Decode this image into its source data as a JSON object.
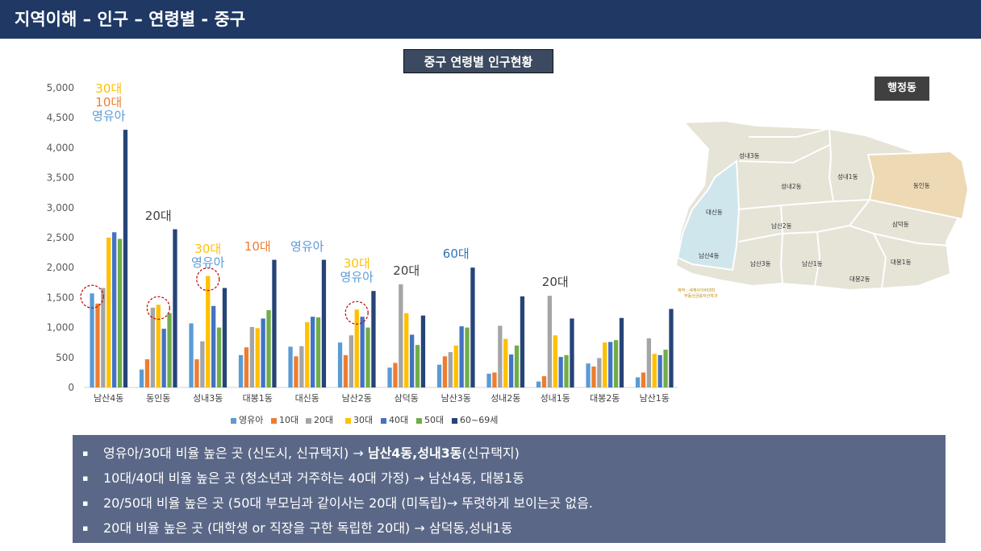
{
  "header": {
    "title": "지역이해 – 인구 – 연령별 - 중구"
  },
  "chart_title": "중구 연령별 인구현황",
  "map": {
    "label": "행정동",
    "districts": [
      "성내3동",
      "성내2동",
      "성내1동",
      "동인동",
      "대신동",
      "남산2동",
      "삼덕동",
      "남산4동",
      "남산3동",
      "남산1동",
      "대봉1동",
      "대봉2동"
    ],
    "credit_line1": "제작 : 세계사이버대학",
    "credit_line2": "부동산금융자산학과",
    "highlight_color": "#eed9b5",
    "blue_color": "#cfe6ec"
  },
  "chart_data": {
    "type": "bar",
    "categories": [
      "남산4동",
      "동인동",
      "성내3동",
      "대봉1동",
      "대신동",
      "남산2동",
      "삼덕동",
      "남산3동",
      "성내2동",
      "성내1동",
      "대봉2동",
      "남산1동"
    ],
    "series": [
      {
        "name": "영유아",
        "color": "#5b9bd5",
        "values": [
          1570,
          300,
          1070,
          540,
          680,
          750,
          330,
          380,
          230,
          100,
          400,
          170
        ]
      },
      {
        "name": "10대",
        "color": "#ed7d31",
        "values": [
          1400,
          470,
          470,
          670,
          520,
          540,
          410,
          520,
          250,
          190,
          350,
          250
        ]
      },
      {
        "name": "20대",
        "color": "#a5a5a5",
        "values": [
          1660,
          1330,
          770,
          1010,
          690,
          870,
          1720,
          590,
          1030,
          1530,
          490,
          820
        ]
      },
      {
        "name": "30대",
        "color": "#ffc000",
        "values": [
          2500,
          1380,
          1860,
          990,
          1090,
          1300,
          1240,
          700,
          810,
          870,
          750,
          560
        ]
      },
      {
        "name": "40대",
        "color": "#4472c4",
        "values": [
          2590,
          980,
          1360,
          1150,
          1180,
          1180,
          880,
          1020,
          550,
          510,
          760,
          540
        ]
      },
      {
        "name": "50대",
        "color": "#70ad47",
        "values": [
          2480,
          1240,
          1000,
          1290,
          1170,
          1000,
          710,
          1000,
          700,
          540,
          790,
          630
        ]
      },
      {
        "name": "60~69세",
        "color": "#264478",
        "values": [
          4300,
          2640,
          1660,
          2130,
          2130,
          1610,
          1200,
          2000,
          1520,
          1150,
          1160,
          1310
        ]
      }
    ],
    "ylim": [
      0,
      5000
    ],
    "yticks": [
      "0",
      "500",
      "1,000",
      "1,500",
      "2,000",
      "2,500",
      "3,000",
      "3,500",
      "4,000",
      "4,500",
      "5,000"
    ],
    "grid": false,
    "legend_position": "bottom",
    "annotations": [
      {
        "category_index": 0,
        "lines": [
          {
            "text": "30대",
            "color": "#ffc000"
          },
          {
            "text": "10대",
            "color": "#ed7d31"
          },
          {
            "text": "영유아",
            "color": "#5b9bd5"
          }
        ]
      },
      {
        "category_index": 1,
        "lines": [
          {
            "text": "20대",
            "color": "#404040"
          }
        ]
      },
      {
        "category_index": 2,
        "lines": [
          {
            "text": "30대",
            "color": "#ffc000"
          },
          {
            "text": "영유아",
            "color": "#5b9bd5"
          }
        ]
      },
      {
        "category_index": 3,
        "lines": [
          {
            "text": "10대",
            "color": "#ed7d31"
          }
        ]
      },
      {
        "category_index": 4,
        "lines": [
          {
            "text": "영유아",
            "color": "#5b9bd5"
          }
        ]
      },
      {
        "category_index": 5,
        "lines": [
          {
            "text": "30대",
            "color": "#ffc000"
          },
          {
            "text": "영유아",
            "color": "#5b9bd5"
          }
        ]
      },
      {
        "category_index": 6,
        "lines": [
          {
            "text": "20대",
            "color": "#404040"
          }
        ]
      },
      {
        "category_index": 7,
        "lines": [
          {
            "text": "60대",
            "color": "#2e75b6"
          }
        ]
      },
      {
        "category_index": 9,
        "lines": [
          {
            "text": "20대",
            "color": "#404040"
          }
        ]
      }
    ],
    "circled": [
      {
        "category_index": 0,
        "series_index": 0
      },
      {
        "category_index": 1,
        "series_index": 3
      },
      {
        "category_index": 2,
        "series_index": 3
      },
      {
        "category_index": 5,
        "series_index": 3
      }
    ]
  },
  "bullets": [
    {
      "marker": "▪",
      "pre": "영유아/30대 비율 높은 곳 (신도시, 신규택지) → ",
      "bold": "남산4동,성내3동",
      "post": "(신규택지)"
    },
    {
      "marker": "▪",
      "pre": "10대/40대 비율 높은 곳 (청소년과 거주하는 40대 가정) → 남산4동, 대봉1동",
      "bold": "",
      "post": ""
    },
    {
      "marker": "▪",
      "pre": "20/50대 비율 높은 곳 (50대 부모님과 같이사는 20대 (미독립)→ 뚜렷하게 보이는곳 없음.",
      "bold": "",
      "post": ""
    },
    {
      "marker": "▪",
      "pre": "20대 비율 높은 곳  (대학생 or 직장을 구한 독립한 20대) → 삼덕동,성내1동",
      "bold": "",
      "post": ""
    }
  ]
}
